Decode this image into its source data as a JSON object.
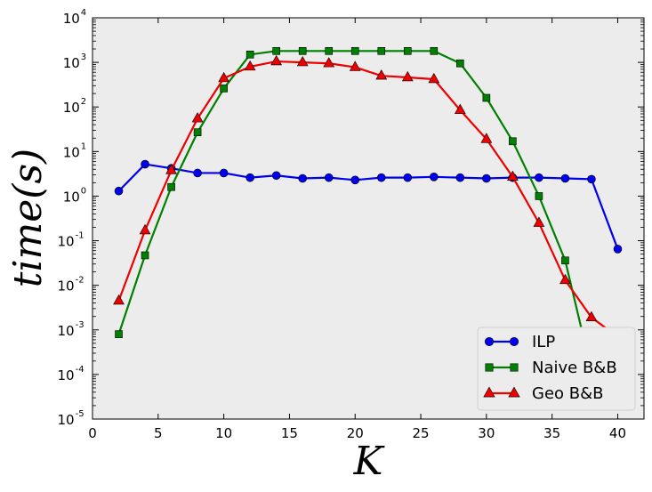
{
  "chart_data": {
    "type": "line",
    "xlabel": "K",
    "ylabel": "time(s)",
    "xlim": [
      0,
      42
    ],
    "ylim": [
      1e-05,
      10000.0
    ],
    "yscale": "log",
    "x_ticks": [
      0,
      5,
      10,
      15,
      20,
      25,
      30,
      35,
      40
    ],
    "y_ticks": [
      {
        "base": "10",
        "exp": "-5",
        "value": 1e-05
      },
      {
        "base": "10",
        "exp": "-4",
        "value": 0.0001
      },
      {
        "base": "10",
        "exp": "-3",
        "value": 0.001
      },
      {
        "base": "10",
        "exp": "-2",
        "value": 0.01
      },
      {
        "base": "10",
        "exp": "-1",
        "value": 0.1
      },
      {
        "base": "10",
        "exp": "0",
        "value": 1
      },
      {
        "base": "10",
        "exp": "1",
        "value": 10
      },
      {
        "base": "10",
        "exp": "2",
        "value": 100
      },
      {
        "base": "10",
        "exp": "3",
        "value": 1000
      },
      {
        "base": "10",
        "exp": "4",
        "value": 10000
      }
    ],
    "grid": false,
    "background": "#ececec",
    "legend_position": "lower right",
    "series": [
      {
        "name": "ILP",
        "color": "#0000ee",
        "marker": "circle",
        "x": [
          2,
          4,
          6,
          8,
          10,
          12,
          14,
          16,
          18,
          20,
          22,
          24,
          26,
          28,
          30,
          32,
          34,
          36,
          38,
          40
        ],
        "y": [
          1.3,
          5.2,
          4.2,
          3.3,
          3.3,
          2.6,
          2.9,
          2.5,
          2.6,
          2.3,
          2.6,
          2.6,
          2.7,
          2.6,
          2.5,
          2.6,
          2.6,
          2.5,
          2.4,
          0.065
        ]
      },
      {
        "name": "Naive B&B",
        "color": "#008000",
        "marker": "square",
        "x": [
          2,
          4,
          6,
          8,
          10,
          12,
          14,
          16,
          18,
          20,
          22,
          24,
          26,
          28,
          30,
          32,
          34,
          36,
          38
        ],
        "y": [
          0.0008,
          0.047,
          1.6,
          27,
          260,
          1500,
          1800,
          1800,
          1800,
          1800,
          1800,
          1800,
          1800,
          950,
          160,
          17,
          1.0,
          0.036,
          0.00012
        ]
      },
      {
        "name": "Geo B&B",
        "color": "#ee0000",
        "marker": "triangle",
        "x": [
          2,
          4,
          6,
          8,
          10,
          12,
          14,
          16,
          18,
          20,
          22,
          24,
          26,
          28,
          30,
          32,
          34,
          36,
          38,
          40
        ],
        "y": [
          0.0045,
          0.17,
          3.8,
          55,
          440,
          800,
          1050,
          1000,
          950,
          780,
          500,
          460,
          420,
          85,
          19,
          2.7,
          0.25,
          0.013,
          0.0019,
          0.0007
        ]
      }
    ]
  }
}
